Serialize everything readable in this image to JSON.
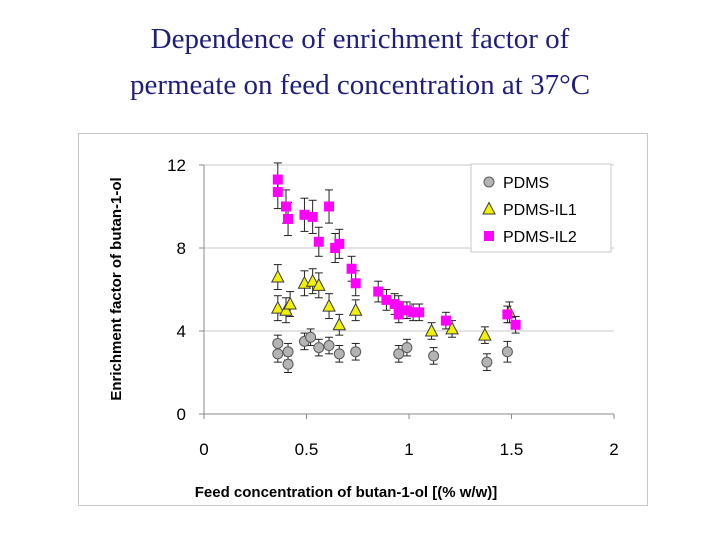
{
  "slide": {
    "title_line1": "Dependence of enrichment factor of",
    "title_line2": "permeate on feed concentration at 37°C"
  },
  "chart_data": {
    "type": "scatter",
    "title": "",
    "xlabel": "Feed concentration of butan-1-ol [(% w/w)]",
    "ylabel": "Enrichment factor of butan-1-ol",
    "xlim": [
      0,
      2
    ],
    "ylim": [
      0,
      12
    ],
    "x_ticks": [
      "0",
      "0.5",
      "1",
      "1.5",
      "2"
    ],
    "y_ticks": [
      "0",
      "4",
      "8",
      "12"
    ],
    "grid": "horizontal",
    "legend_position": "top-right",
    "error_bars": true,
    "series": [
      {
        "name": "PDMS",
        "marker": "circle",
        "color": "#b4b4b4",
        "points": [
          {
            "x": 0.36,
            "y": 3.4,
            "err": 0.4
          },
          {
            "x": 0.36,
            "y": 2.9,
            "err": 0.4
          },
          {
            "x": 0.41,
            "y": 3.0,
            "err": 0.4
          },
          {
            "x": 0.41,
            "y": 2.4,
            "err": 0.4
          },
          {
            "x": 0.49,
            "y": 3.5,
            "err": 0.4
          },
          {
            "x": 0.52,
            "y": 3.7,
            "err": 0.4
          },
          {
            "x": 0.56,
            "y": 3.2,
            "err": 0.4
          },
          {
            "x": 0.61,
            "y": 3.3,
            "err": 0.4
          },
          {
            "x": 0.66,
            "y": 2.9,
            "err": 0.4
          },
          {
            "x": 0.74,
            "y": 3.0,
            "err": 0.4
          },
          {
            "x": 0.95,
            "y": 2.9,
            "err": 0.4
          },
          {
            "x": 0.99,
            "y": 3.2,
            "err": 0.4
          },
          {
            "x": 1.12,
            "y": 2.8,
            "err": 0.4
          },
          {
            "x": 1.38,
            "y": 2.5,
            "err": 0.4
          },
          {
            "x": 1.48,
            "y": 3.0,
            "err": 0.5
          }
        ]
      },
      {
        "name": "PDMS-IL1",
        "marker": "triangle",
        "color": "#f2f200",
        "points": [
          {
            "x": 0.36,
            "y": 6.6,
            "err": 0.6
          },
          {
            "x": 0.36,
            "y": 5.1,
            "err": 0.6
          },
          {
            "x": 0.4,
            "y": 5.0,
            "err": 0.6
          },
          {
            "x": 0.42,
            "y": 5.3,
            "err": 0.6
          },
          {
            "x": 0.49,
            "y": 6.3,
            "err": 0.6
          },
          {
            "x": 0.53,
            "y": 6.4,
            "err": 0.6
          },
          {
            "x": 0.56,
            "y": 6.2,
            "err": 0.6
          },
          {
            "x": 0.61,
            "y": 5.2,
            "err": 0.6
          },
          {
            "x": 0.66,
            "y": 4.3,
            "err": 0.5
          },
          {
            "x": 0.74,
            "y": 5.0,
            "err": 0.5
          },
          {
            "x": 1.11,
            "y": 4.0,
            "err": 0.4
          },
          {
            "x": 1.21,
            "y": 4.1,
            "err": 0.4
          },
          {
            "x": 1.37,
            "y": 3.8,
            "err": 0.4
          },
          {
            "x": 1.49,
            "y": 4.9,
            "err": 0.5
          }
        ]
      },
      {
        "name": "PDMS-IL2",
        "marker": "square",
        "color": "#ff00ff",
        "points": [
          {
            "x": 0.36,
            "y": 11.3,
            "err": 0.8
          },
          {
            "x": 0.36,
            "y": 10.7,
            "err": 0.8
          },
          {
            "x": 0.4,
            "y": 10.0,
            "err": 0.8
          },
          {
            "x": 0.41,
            "y": 9.4,
            "err": 0.8
          },
          {
            "x": 0.49,
            "y": 9.6,
            "err": 0.8
          },
          {
            "x": 0.53,
            "y": 9.5,
            "err": 0.8
          },
          {
            "x": 0.56,
            "y": 8.3,
            "err": 0.7
          },
          {
            "x": 0.61,
            "y": 10.0,
            "err": 0.8
          },
          {
            "x": 0.64,
            "y": 8.0,
            "err": 0.7
          },
          {
            "x": 0.66,
            "y": 8.2,
            "err": 0.7
          },
          {
            "x": 0.72,
            "y": 7.0,
            "err": 0.6
          },
          {
            "x": 0.74,
            "y": 6.3,
            "err": 0.6
          },
          {
            "x": 0.85,
            "y": 5.9,
            "err": 0.5
          },
          {
            "x": 0.89,
            "y": 5.5,
            "err": 0.5
          },
          {
            "x": 0.93,
            "y": 5.3,
            "err": 0.5
          },
          {
            "x": 0.95,
            "y": 5.2,
            "err": 0.5
          },
          {
            "x": 0.95,
            "y": 4.8,
            "err": 0.4
          },
          {
            "x": 0.99,
            "y": 5.0,
            "err": 0.4
          },
          {
            "x": 1.02,
            "y": 4.9,
            "err": 0.4
          },
          {
            "x": 1.05,
            "y": 4.9,
            "err": 0.4
          },
          {
            "x": 1.18,
            "y": 4.5,
            "err": 0.4
          },
          {
            "x": 1.48,
            "y": 4.8,
            "err": 0.4
          },
          {
            "x": 1.52,
            "y": 4.3,
            "err": 0.4
          }
        ]
      }
    ]
  }
}
